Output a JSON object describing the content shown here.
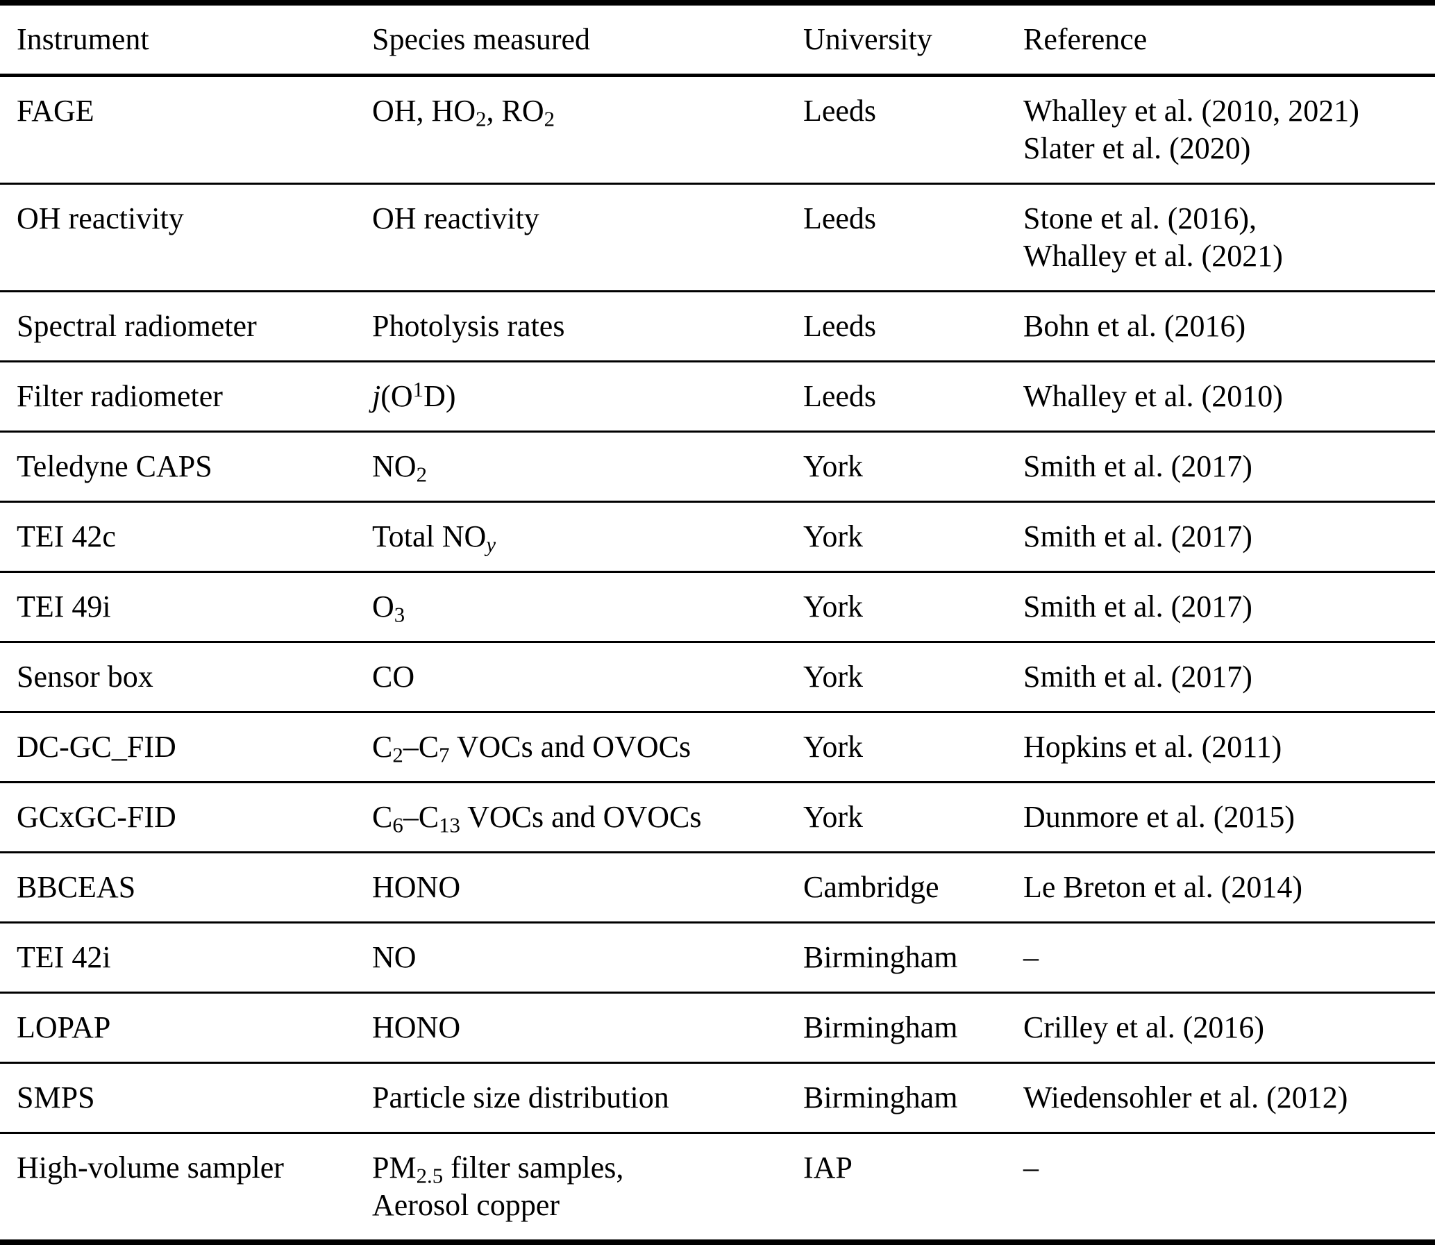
{
  "table": {
    "columns": [
      "Instrument",
      "Species measured",
      "University",
      "Reference"
    ],
    "rows": [
      {
        "instrument": "FAGE",
        "species": [
          [
            [
              "OH, HO"
            ],
            [
              "2",
              "sub"
            ],
            [
              ", RO"
            ],
            [
              "2",
              "sub"
            ]
          ]
        ],
        "university": "Leeds",
        "reference": [
          "Whalley et al. (2010, 2021)",
          "Slater et al. (2020)"
        ]
      },
      {
        "instrument": "OH reactivity",
        "species": [
          [
            [
              "OH reactivity"
            ]
          ]
        ],
        "university": "Leeds",
        "reference": [
          "Stone et al. (2016),",
          "Whalley et al. (2021)"
        ]
      },
      {
        "instrument": "Spectral radiometer",
        "species": [
          [
            [
              "Photolysis rates"
            ]
          ]
        ],
        "university": "Leeds",
        "reference": [
          "Bohn et al. (2016)"
        ]
      },
      {
        "instrument": "Filter radiometer",
        "species": [
          [
            [
              "j",
              "i"
            ],
            [
              "(O"
            ],
            [
              "1",
              "sup"
            ],
            [
              "D)"
            ]
          ]
        ],
        "university": "Leeds",
        "reference": [
          "Whalley et al. (2010)"
        ]
      },
      {
        "instrument": "Teledyne CAPS",
        "species": [
          [
            [
              "NO"
            ],
            [
              "2",
              "sub"
            ]
          ]
        ],
        "university": "York",
        "reference": [
          "Smith et al. (2017)"
        ]
      },
      {
        "instrument": "TEI 42c",
        "species": [
          [
            [
              "Total NO"
            ],
            [
              "y",
              "subi"
            ]
          ]
        ],
        "university": "York",
        "reference": [
          "Smith et al. (2017)"
        ]
      },
      {
        "instrument": "TEI 49i",
        "species": [
          [
            [
              "O"
            ],
            [
              "3",
              "sub"
            ]
          ]
        ],
        "university": "York",
        "reference": [
          "Smith et al. (2017)"
        ]
      },
      {
        "instrument": "Sensor box",
        "species": [
          [
            [
              "CO"
            ]
          ]
        ],
        "university": "York",
        "reference": [
          "Smith et al. (2017)"
        ]
      },
      {
        "instrument": "DC-GC_FID",
        "species": [
          [
            [
              "C"
            ],
            [
              "2",
              "sub"
            ],
            [
              "–C"
            ],
            [
              "7",
              "sub"
            ],
            [
              " VOCs and OVOCs"
            ]
          ]
        ],
        "university": "York",
        "reference": [
          "Hopkins et al. (2011)"
        ]
      },
      {
        "instrument": "GCxGC-FID",
        "species": [
          [
            [
              "C"
            ],
            [
              "6",
              "sub"
            ],
            [
              "–C"
            ],
            [
              "13",
              "sub"
            ],
            [
              " VOCs and OVOCs"
            ]
          ]
        ],
        "university": "York",
        "reference": [
          "Dunmore et al. (2015)"
        ]
      },
      {
        "instrument": "BBCEAS",
        "species": [
          [
            [
              "HONO"
            ]
          ]
        ],
        "university": "Cambridge",
        "reference": [
          "Le Breton et al. (2014)"
        ]
      },
      {
        "instrument": "TEI 42i",
        "species": [
          [
            [
              "NO"
            ]
          ]
        ],
        "university": "Birmingham",
        "reference": [
          "–"
        ]
      },
      {
        "instrument": "LOPAP",
        "species": [
          [
            [
              "HONO"
            ]
          ]
        ],
        "university": "Birmingham",
        "reference": [
          "Crilley et al. (2016)"
        ]
      },
      {
        "instrument": "SMPS",
        "species": [
          [
            [
              "Particle size distribution"
            ]
          ]
        ],
        "university": "Birmingham",
        "reference": [
          "Wiedensohler et al. (2012)"
        ]
      },
      {
        "instrument": "High-volume sampler",
        "species": [
          [
            [
              "PM"
            ],
            [
              "2.5",
              "sub"
            ],
            [
              " filter samples,"
            ]
          ],
          [
            [
              "Aerosol copper"
            ]
          ]
        ],
        "university": "IAP",
        "reference": [
          "–"
        ]
      }
    ]
  }
}
